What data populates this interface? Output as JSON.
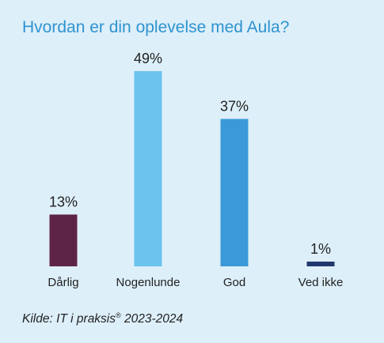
{
  "chart_data": {
    "type": "bar",
    "title": "Hvordan er din oplevelse med Aula?",
    "categories": [
      "Dårlig",
      "Nogenlunde",
      "God",
      "Ved ikke"
    ],
    "values": [
      13,
      49,
      37,
      1
    ],
    "value_labels": [
      "13%",
      "49%",
      "37%",
      "1%"
    ],
    "colors": [
      "#5e2447",
      "#6cc3ee",
      "#3a99d8",
      "#21386e"
    ],
    "xlabel": "",
    "ylabel": "",
    "ylim": [
      0,
      49
    ],
    "grid": false,
    "legend": "none"
  },
  "source": {
    "prefix": "Kilde: IT i praksis",
    "mark": "®",
    "suffix": " 2023-2024"
  },
  "colors": {
    "background": "#ddeff9",
    "title": "#2f93d0"
  }
}
